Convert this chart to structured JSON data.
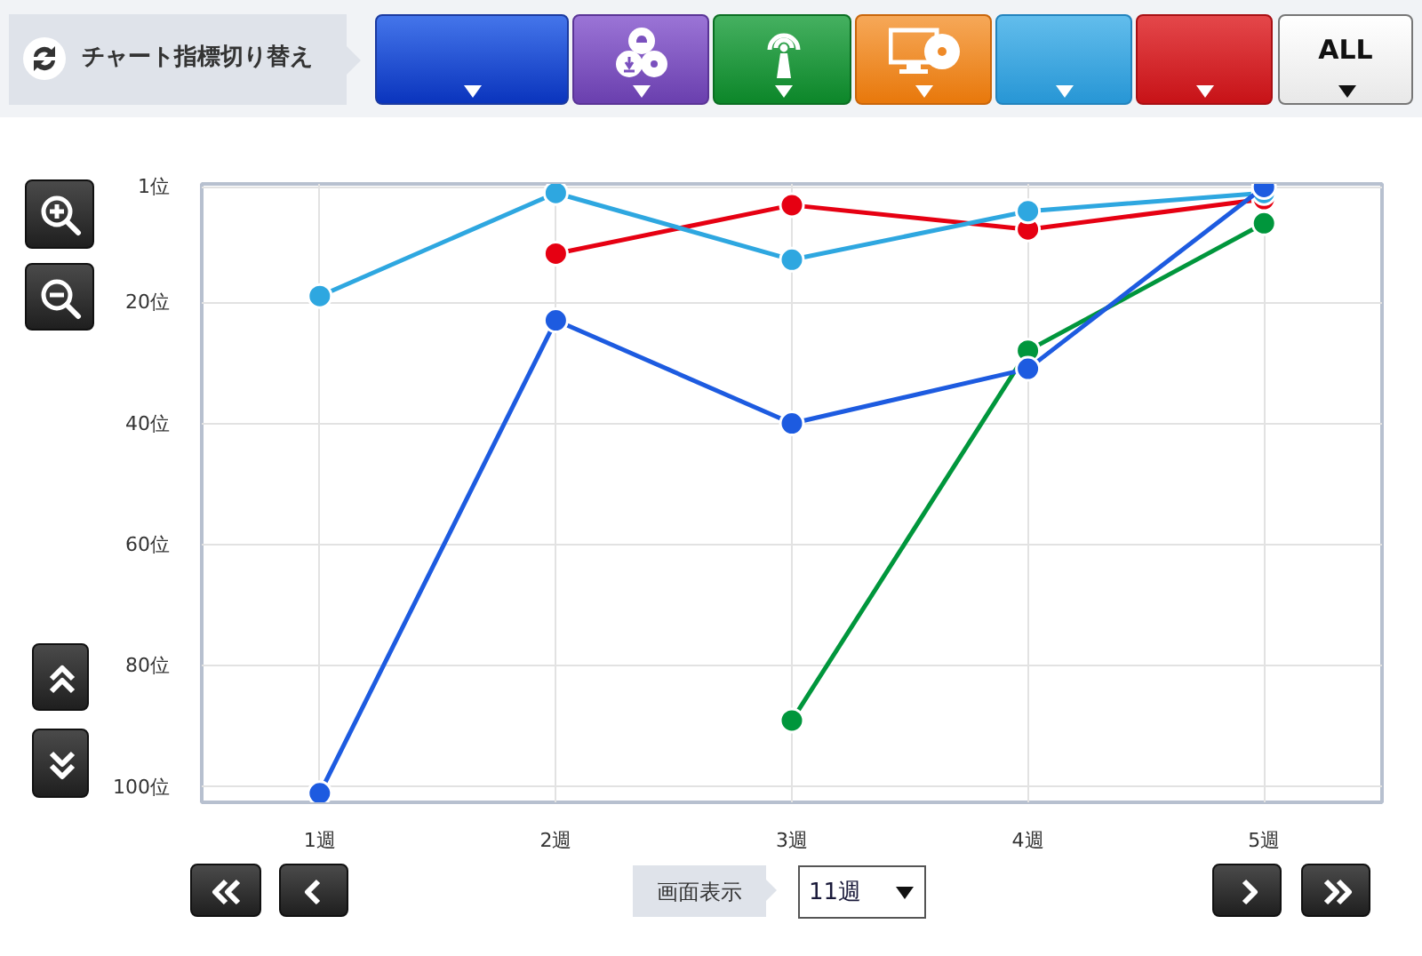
{
  "chart_data": {
    "type": "line",
    "categories": [
      "1週",
      "2週",
      "3週",
      "4週",
      "5週"
    ],
    "series": [
      {
        "color": "#e60012",
        "values": [
          null,
          12,
          4,
          8,
          3
        ]
      },
      {
        "color": "#2ea7e0",
        "values": [
          19,
          2,
          13,
          5,
          2
        ]
      },
      {
        "color": "#00963c",
        "values": [
          null,
          null,
          89,
          28,
          7
        ]
      },
      {
        "color": "#1d5be0",
        "values": [
          101,
          23,
          40,
          31,
          1
        ]
      }
    ],
    "ylim": [
      102.5,
      0.5
    ],
    "yticks": [
      {
        "value": 1,
        "label": "1位"
      },
      {
        "value": 20,
        "label": "20位"
      },
      {
        "value": 40,
        "label": "40位"
      },
      {
        "value": 60,
        "label": "60位"
      },
      {
        "value": 80,
        "label": "80位"
      },
      {
        "value": 100,
        "label": "100位"
      }
    ],
    "grid": true,
    "marker": "circle",
    "line_style": "solid",
    "annotations": [
      "チャート指標切り替え",
      "ALL",
      "画面表示",
      "11週"
    ]
  }
}
